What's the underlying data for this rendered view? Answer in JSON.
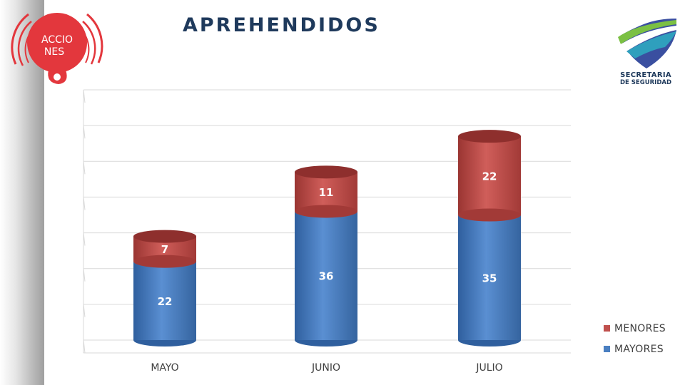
{
  "brand": {
    "acciones_logo": "ACCIONES",
    "org_line1": "SECRETARIA",
    "org_line2": "DE SEGURIDAD"
  },
  "colors": {
    "mayores": "#4a7fc1",
    "menores": "#c0504d",
    "title": "#1f3a5c"
  },
  "chart_data": {
    "type": "bar",
    "stacked": true,
    "style": "3d-cylinder",
    "title": "APREHENDIDOS",
    "categories": [
      "MAYO",
      "JUNIO",
      "JULIO"
    ],
    "series": [
      {
        "name": "MAYORES",
        "values": [
          22,
          36,
          35
        ],
        "color": "#4a7fc1"
      },
      {
        "name": "MENORES",
        "values": [
          7,
          11,
          22
        ],
        "color": "#c0504d"
      }
    ],
    "ylim": [
      0,
      70
    ],
    "grid": true,
    "legend": "right"
  }
}
